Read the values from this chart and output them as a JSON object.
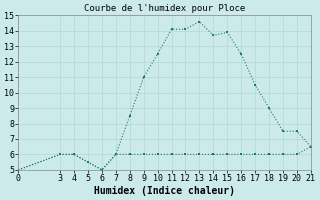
{
  "x": [
    0,
    3,
    4,
    5,
    6,
    7,
    8,
    9,
    10,
    11,
    12,
    13,
    14,
    15,
    16,
    17,
    18,
    19,
    20,
    21
  ],
  "y_humidex": [
    5,
    6,
    6,
    5.5,
    5,
    6,
    8.5,
    11,
    12.5,
    14.1,
    14.1,
    14.6,
    13.7,
    13.9,
    12.5,
    10.5,
    9,
    7.5,
    7.5,
    6.5
  ],
  "y_flat": [
    5,
    6,
    6,
    5.5,
    5,
    6,
    6,
    6,
    6,
    6,
    6,
    6,
    6,
    6,
    6,
    6,
    6,
    6,
    6,
    6.5
  ],
  "color": "#1a7a6e",
  "bg_color": "#cceaea",
  "grid_color": "#b0d8d8",
  "title": "Courbe de l'humidex pour Ploce",
  "xlabel": "Humidex (Indice chaleur)",
  "xlim": [
    0,
    21
  ],
  "ylim": [
    5,
    15
  ],
  "xticks": [
    0,
    3,
    4,
    5,
    6,
    7,
    8,
    9,
    10,
    11,
    12,
    13,
    14,
    15,
    16,
    17,
    18,
    19,
    20,
    21
  ],
  "yticks": [
    5,
    6,
    7,
    8,
    9,
    10,
    11,
    12,
    13,
    14,
    15
  ],
  "tick_fontsize": 6,
  "xlabel_fontsize": 7,
  "title_fontsize": 6.5
}
